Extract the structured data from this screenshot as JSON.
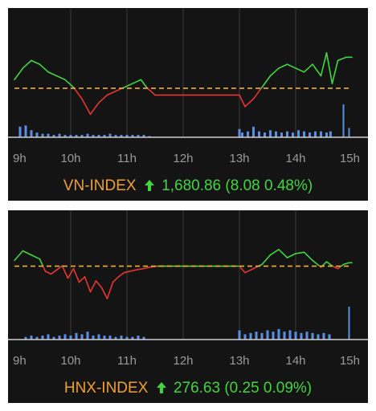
{
  "colors": {
    "background": "#141414",
    "grid": "#3a3a3a",
    "up": "#3fd63f",
    "down": "#e8352f",
    "reference": "#f0b030",
    "volume": "#5b8fe6",
    "axis_text": "#9a9a9a",
    "index_name": "#f0a030",
    "index_value": "#3fd63f"
  },
  "chart_data": [
    {
      "type": "line",
      "title": "VN-INDEX",
      "x_ticks": [
        "9h",
        "10h",
        "11h",
        "12h",
        "13h",
        "14h",
        "15h"
      ],
      "xlim": [
        9,
        15
      ],
      "ylim": [
        1660,
        1692
      ],
      "reference": 1672.78,
      "grid": true,
      "price_series": {
        "name": "VN-INDEX",
        "x": [
          9.0,
          9.15,
          9.3,
          9.45,
          9.6,
          9.75,
          9.9,
          10.05,
          10.2,
          10.35,
          10.5,
          10.65,
          10.8,
          10.95,
          11.1,
          11.25,
          11.35,
          11.5,
          12.0,
          13.0,
          13.1,
          13.25,
          13.4,
          13.55,
          13.7,
          13.85,
          14.0,
          14.15,
          14.3,
          14.45,
          14.55,
          14.65,
          14.75,
          14.9,
          15.0
        ],
        "values": [
          1675,
          1678,
          1680,
          1679,
          1677,
          1676,
          1675,
          1673,
          1670,
          1666,
          1669,
          1671,
          1672,
          1673,
          1674,
          1675,
          1673,
          1671,
          1671,
          1671,
          1668,
          1670,
          1673,
          1676,
          1678,
          1679,
          1678,
          1677,
          1679,
          1676,
          1682,
          1674,
          1680,
          1680.86,
          1680.86
        ],
        "change": "1,680.86 (8.08 0.48%)",
        "direction": "up"
      },
      "volume_series": {
        "name": "volume",
        "x": [
          9.1,
          9.2,
          9.3,
          9.4,
          9.5,
          9.6,
          9.7,
          9.8,
          9.9,
          10.0,
          10.1,
          10.2,
          10.3,
          10.4,
          10.5,
          10.6,
          10.7,
          10.8,
          10.9,
          11.0,
          11.1,
          11.2,
          11.3,
          11.4,
          13.0,
          13.05,
          13.15,
          13.25,
          13.35,
          13.45,
          13.55,
          13.65,
          13.75,
          13.85,
          13.95,
          14.05,
          14.15,
          14.25,
          14.35,
          14.45,
          14.55,
          14.62,
          14.85,
          14.95
        ],
        "values": [
          9,
          10,
          6,
          4,
          3,
          3,
          2,
          3,
          2,
          2,
          2,
          2,
          3,
          2,
          2,
          2,
          3,
          2,
          2,
          2,
          2,
          2,
          2,
          1,
          7,
          4,
          5,
          9,
          5,
          4,
          6,
          5,
          4,
          5,
          4,
          6,
          5,
          4,
          5,
          5,
          4,
          5,
          28,
          8
        ]
      }
    },
    {
      "type": "line",
      "title": "HNX-INDEX",
      "x_ticks": [
        "9h",
        "10h",
        "11h",
        "12h",
        "13h",
        "14h",
        "15h"
      ],
      "xlim": [
        9,
        15
      ],
      "ylim": [
        271,
        280
      ],
      "reference": 276.38,
      "grid": true,
      "price_series": {
        "name": "HNX-INDEX",
        "x": [
          9.0,
          9.15,
          9.3,
          9.45,
          9.55,
          9.65,
          9.75,
          9.85,
          9.95,
          10.05,
          10.15,
          10.25,
          10.35,
          10.45,
          10.55,
          10.65,
          10.75,
          10.85,
          10.95,
          11.05,
          11.15,
          11.3,
          11.4,
          11.55,
          12.0,
          13.0,
          13.1,
          13.25,
          13.4,
          13.55,
          13.7,
          13.85,
          14.0,
          14.15,
          14.3,
          14.45,
          14.55,
          14.65,
          14.75,
          14.85,
          14.95,
          15.0
        ],
        "values": [
          276.8,
          277.5,
          277.2,
          276.9,
          276.0,
          275.8,
          276.1,
          276.4,
          275.5,
          276.2,
          275.2,
          275.6,
          274.5,
          275.3,
          274.8,
          274.0,
          275.2,
          275.6,
          275.9,
          276.0,
          276.1,
          276.2,
          276.3,
          276.38,
          276.38,
          276.38,
          275.9,
          276.2,
          276.5,
          277.2,
          277.6,
          277.0,
          277.3,
          277.4,
          276.8,
          276.3,
          276.7,
          276.4,
          276.2,
          276.5,
          276.63,
          276.63
        ],
        "change": "276.63 (0.25 0.09%)",
        "direction": "up"
      },
      "volume_series": {
        "name": "volume",
        "x": [
          9.2,
          9.3,
          9.4,
          9.5,
          9.6,
          9.7,
          9.8,
          9.9,
          10.0,
          10.1,
          10.2,
          10.3,
          10.4,
          10.5,
          10.6,
          10.7,
          10.8,
          10.9,
          11.0,
          11.1,
          11.2,
          11.3,
          13.0,
          13.1,
          13.2,
          13.3,
          13.4,
          13.5,
          13.6,
          13.7,
          13.8,
          13.9,
          14.0,
          14.1,
          14.2,
          14.3,
          14.4,
          14.5,
          14.6,
          14.95
        ],
        "values": [
          2,
          3,
          2,
          3,
          4,
          2,
          3,
          4,
          3,
          5,
          4,
          6,
          3,
          4,
          3,
          3,
          2,
          3,
          2,
          2,
          3,
          2,
          7,
          4,
          5,
          6,
          5,
          7,
          6,
          8,
          6,
          7,
          6,
          5,
          6,
          5,
          4,
          5,
          4,
          25
        ]
      }
    }
  ]
}
